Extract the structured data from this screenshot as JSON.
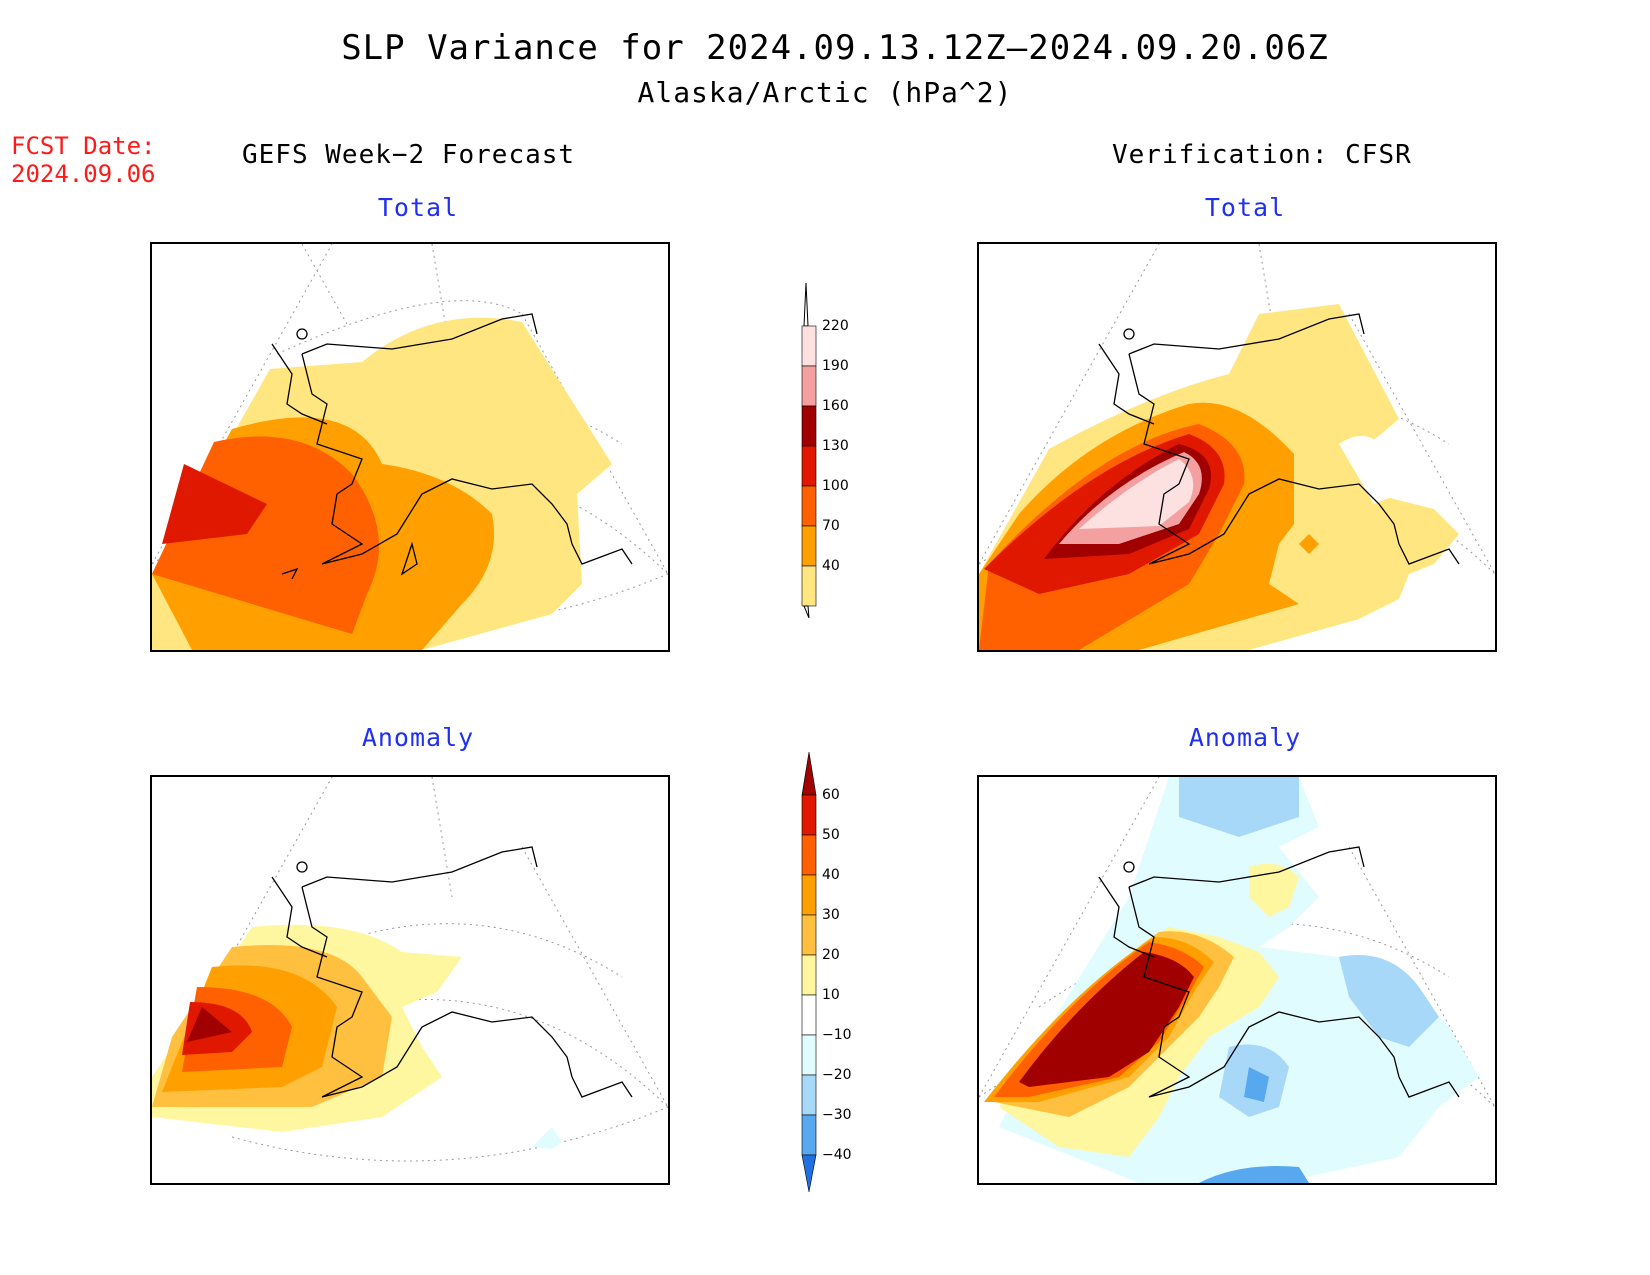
{
  "title": "SLP Variance for 2024.09.13.12Z–2024.09.20.06Z",
  "subtitle": "Alaska/Arctic (hPa^2)",
  "fcst_date_label": "FCST Date:",
  "fcst_date_value": "2024.09.06",
  "left_header": "GEFS Week−2 Forecast",
  "right_header": "Verification: CFSR",
  "panels": {
    "top_left_title": "Total",
    "top_right_title": "Total",
    "bottom_left_title": "Anomaly",
    "bottom_right_title": "Anomaly"
  },
  "colorbar_total": {
    "labels": [
      "220",
      "190",
      "160",
      "130",
      "100",
      "70",
      "40"
    ],
    "colors": [
      "#fde0e0",
      "#f4a0a0",
      "#a00000",
      "#e01800",
      "#ff6000",
      "#ffa000",
      "#ffe680"
    ]
  },
  "colorbar_anomaly": {
    "labels": [
      "60",
      "50",
      "40",
      "30",
      "20",
      "10",
      "−10",
      "−20",
      "−30",
      "−40"
    ],
    "colors": [
      "#a00000",
      "#e01800",
      "#ff6000",
      "#ffa000",
      "#ffc040",
      "#fff6a0",
      "#ffffff",
      "#e0fcff",
      "#a8d8f8",
      "#58a8f0",
      "#2070e0"
    ]
  }
}
